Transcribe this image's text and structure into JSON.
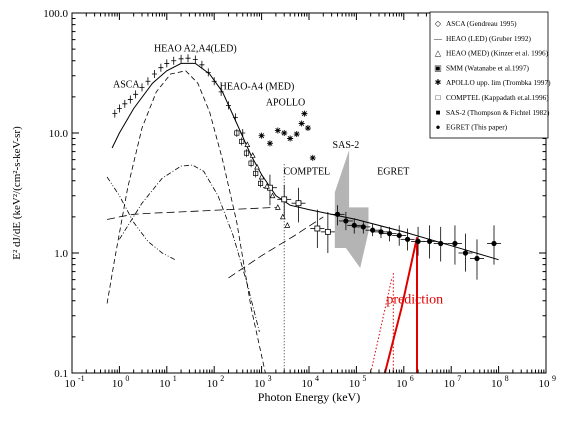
{
  "chart_data": {
    "type": "scatter",
    "xlabel": "Photon Energy (keV)",
    "ylabel": "E² dJ/dE (keV²/(cm²-s-keV-sr)",
    "xlog": true,
    "ylog": true,
    "xlim": [
      0.1,
      1000000000
    ],
    "ylim": [
      0.1,
      100
    ],
    "grid": false,
    "legend_position": "top-right",
    "x_ticks": [
      {
        "value": 0.1,
        "label": "10",
        "exp": "-1"
      },
      {
        "value": 1,
        "label": "10",
        "exp": "0"
      },
      {
        "value": 10,
        "label": "10",
        "exp": "1"
      },
      {
        "value": 100,
        "label": "10",
        "exp": "2"
      },
      {
        "value": 1000,
        "label": "10",
        "exp": "3"
      },
      {
        "value": 10000,
        "label": "10",
        "exp": "4"
      },
      {
        "value": 100000,
        "label": "10",
        "exp": "5"
      },
      {
        "value": 1000000,
        "label": "10",
        "exp": "6"
      },
      {
        "value": 10000000,
        "label": "10",
        "exp": "7"
      },
      {
        "value": 100000000,
        "label": "10",
        "exp": "8"
      },
      {
        "value": 1000000000,
        "label": "10",
        "exp": "9"
      }
    ],
    "y_ticks": [
      {
        "value": 0.1,
        "label": "0.1"
      },
      {
        "value": 1,
        "label": "1.0"
      },
      {
        "value": 10,
        "label": "10.0"
      },
      {
        "value": 100,
        "label": "100.0"
      }
    ],
    "legend": [
      {
        "marker": "◇",
        "label": "ASCA (Gendreau 1995)"
      },
      {
        "marker": "—",
        "label": "HEAO (LED) (Gruber 1992)"
      },
      {
        "marker": "△",
        "label": "HEAO (MED) (Kinzer et al. 1996)"
      },
      {
        "marker": "▣",
        "label": "SMM (Watanabe et al.1997)"
      },
      {
        "marker": "✱",
        "label": "APOLLO upp. lim (Trombka 1997)"
      },
      {
        "marker": "□",
        "label": "COMPTEL (Kappadath et.al.1996)"
      },
      {
        "marker": "■",
        "label": "SAS-2 (Thompson & Fichtel 1982)"
      },
      {
        "marker": "●",
        "label": "EGRET (This paper)"
      }
    ],
    "annotations": [
      {
        "text": "HEAO A2,A4(LED)",
        "x": 40,
        "y": 48
      },
      {
        "text": "ASCA",
        "x": 1.4,
        "y": 24
      },
      {
        "text": "HEAO-A4 (MED)",
        "x": 800,
        "y": 23
      },
      {
        "text": "APOLLO",
        "x": 3200,
        "y": 17
      },
      {
        "text": "SAS-2",
        "x": 60000,
        "y": 7.5
      },
      {
        "text": "COMPTEL",
        "x": 9000,
        "y": 4.5
      },
      {
        "text": "EGRET",
        "x": 600000,
        "y": 4.5
      },
      {
        "text": "prediction",
        "x": 1700000,
        "y": 0.38
      }
    ],
    "series": [
      {
        "name": "EGRET (This paper)",
        "marker": "filled-circle",
        "points": [
          {
            "x": 40000,
            "y": 2.1,
            "ylo": 1.7,
            "yhi": 2.5
          },
          {
            "x": 60000,
            "y": 1.85,
            "ylo": 1.55,
            "yhi": 2.2
          },
          {
            "x": 90000,
            "y": 1.7,
            "ylo": 1.45,
            "yhi": 1.95
          },
          {
            "x": 140000,
            "y": 1.65,
            "ylo": 1.45,
            "yhi": 1.85
          },
          {
            "x": 220000,
            "y": 1.55,
            "ylo": 1.38,
            "yhi": 1.75
          },
          {
            "x": 330000,
            "y": 1.5,
            "ylo": 1.33,
            "yhi": 1.68
          },
          {
            "x": 500000,
            "y": 1.45,
            "ylo": 1.25,
            "yhi": 1.65
          },
          {
            "x": 800000,
            "y": 1.4,
            "ylo": 1.15,
            "yhi": 1.7
          },
          {
            "x": 1200000,
            "y": 1.3,
            "ylo": 1.05,
            "yhi": 1.6
          },
          {
            "x": 2000000,
            "y": 1.25,
            "ylo": 0.95,
            "yhi": 1.65
          },
          {
            "x": 3500000,
            "y": 1.25,
            "ylo": 0.9,
            "yhi": 1.7
          },
          {
            "x": 6000000,
            "y": 1.2,
            "ylo": 0.85,
            "yhi": 1.65
          },
          {
            "x": 12000000,
            "y": 1.2,
            "ylo": 0.8,
            "yhi": 1.7
          },
          {
            "x": 20000000,
            "y": 1.0,
            "ylo": 0.7,
            "yhi": 1.45
          },
          {
            "x": 35000000,
            "y": 0.9,
            "ylo": 0.6,
            "yhi": 1.3
          },
          {
            "x": 80000000,
            "y": 1.2,
            "ylo": 0.8,
            "yhi": 1.7
          }
        ]
      },
      {
        "name": "COMPTEL (Kappadath et.al.1996)",
        "marker": "open-square",
        "points": [
          {
            "x": 1500,
            "y": 3.5,
            "ylo": 2.5,
            "yhi": 4.5
          },
          {
            "x": 3000,
            "y": 2.8,
            "ylo": 2.0,
            "yhi": 3.7
          },
          {
            "x": 6000,
            "y": 2.6,
            "ylo": 1.8,
            "yhi": 3.5
          },
          {
            "x": 15000,
            "y": 1.6,
            "ylo": 1.1,
            "yhi": 2.3
          },
          {
            "x": 25000,
            "y": 1.5,
            "ylo": 1.0,
            "yhi": 2.2
          }
        ]
      },
      {
        "name": "APOLLO upp. lim (Trombka 1997)",
        "marker": "asterisk",
        "points": [
          {
            "x": 1000,
            "y": 9.5
          },
          {
            "x": 1500,
            "y": 8.2
          },
          {
            "x": 2200,
            "y": 10.5
          },
          {
            "x": 3000,
            "y": 10.0
          },
          {
            "x": 4000,
            "y": 9.0
          },
          {
            "x": 5500,
            "y": 9.8
          },
          {
            "x": 7000,
            "y": 12.0
          },
          {
            "x": 8000,
            "y": 14.5
          },
          {
            "x": 9500,
            "y": 11.0
          },
          {
            "x": 12000,
            "y": 6.2
          }
        ]
      },
      {
        "name": "HEAO (LED) (Gruber 1992)",
        "marker": "crosshair",
        "points": [
          {
            "x": 0.8,
            "y": 14.5
          },
          {
            "x": 1.0,
            "y": 16.0
          },
          {
            "x": 1.3,
            "y": 17.5
          },
          {
            "x": 1.7,
            "y": 19.0
          },
          {
            "x": 2.2,
            "y": 21.0
          },
          {
            "x": 3.0,
            "y": 24.0
          },
          {
            "x": 4.0,
            "y": 27.0
          },
          {
            "x": 5.5,
            "y": 31.0
          },
          {
            "x": 7.5,
            "y": 35.0
          },
          {
            "x": 10,
            "y": 38.0
          },
          {
            "x": 14,
            "y": 40.0
          },
          {
            "x": 20,
            "y": 41.5
          },
          {
            "x": 28,
            "y": 42.0
          },
          {
            "x": 40,
            "y": 41.0
          },
          {
            "x": 55,
            "y": 37.0
          },
          {
            "x": 75,
            "y": 32.0
          },
          {
            "x": 100,
            "y": 27.0
          },
          {
            "x": 140,
            "y": 22.0
          },
          {
            "x": 200,
            "y": 17.0
          },
          {
            "x": 280,
            "y": 13.5
          },
          {
            "x": 400,
            "y": 10.0
          }
        ]
      },
      {
        "name": "HEAO (MED) (Kinzer et al. 1996)",
        "marker": "triangle",
        "points": [
          {
            "x": 500,
            "y": 8.0
          },
          {
            "x": 650,
            "y": 6.5
          },
          {
            "x": 800,
            "y": 5.2
          },
          {
            "x": 1000,
            "y": 4.3
          },
          {
            "x": 1300,
            "y": 3.6
          },
          {
            "x": 1700,
            "y": 3.0
          },
          {
            "x": 2200,
            "y": 2.4
          },
          {
            "x": 2800,
            "y": 2.0
          },
          {
            "x": 3500,
            "y": 1.7
          }
        ]
      },
      {
        "name": "SMM (Watanabe et al.1997)",
        "marker": "boxed-plus",
        "points": [
          {
            "x": 300,
            "y": 10.0
          },
          {
            "x": 380,
            "y": 8.5
          },
          {
            "x": 480,
            "y": 6.8
          },
          {
            "x": 600,
            "y": 5.6
          },
          {
            "x": 750,
            "y": 4.6
          },
          {
            "x": 950,
            "y": 3.8
          }
        ]
      }
    ],
    "bands": [
      {
        "name": "SAS-2 (Thompson & Fichtel 1982)",
        "polygon": [
          [
            35000,
            1.1
          ],
          [
            35000,
            3.2
          ],
          [
            70000,
            7.2
          ],
          [
            70000,
            2.4
          ],
          [
            180000,
            2.4
          ],
          [
            180000,
            1.5
          ],
          [
            120000,
            0.75
          ],
          [
            60000,
            1.1
          ]
        ]
      }
    ],
    "curves": [
      {
        "name": "total model",
        "style": "solid",
        "x": [
          0.7,
          1,
          2,
          5,
          10,
          20,
          40,
          80,
          150,
          300,
          600,
          1000,
          2000,
          4000,
          10000,
          100000,
          1000000,
          10000000,
          100000000
        ],
        "y": [
          7.5,
          10,
          16,
          26,
          33,
          38,
          38,
          31,
          22,
          12,
          6.5,
          4.5,
          3.0,
          2.5,
          2.3,
          1.9,
          1.5,
          1.15,
          0.88
        ]
      },
      {
        "name": "component 1",
        "style": "dashed",
        "x": [
          0.55,
          0.8,
          1.5,
          3,
          6,
          12,
          25,
          45,
          80,
          150,
          300,
          600,
          1200
        ],
        "y": [
          0.38,
          0.9,
          3.5,
          11,
          22,
          31,
          33,
          26,
          15,
          6,
          1.8,
          0.35,
          0.1
        ]
      },
      {
        "name": "component 2",
        "style": "dash-dot",
        "x": [
          1,
          3,
          8,
          20,
          35,
          60,
          120,
          250,
          500,
          900
        ],
        "y": [
          1.3,
          2.6,
          4.2,
          5.3,
          5.4,
          4.8,
          3.0,
          1.4,
          0.55,
          0.22
        ]
      },
      {
        "name": "component 3",
        "style": "dash-dot-dot",
        "x": [
          0.55,
          1,
          2,
          4,
          8,
          15
        ],
        "y": [
          4.3,
          3.0,
          1.8,
          1.25,
          1.0,
          0.88
        ]
      },
      {
        "name": "component 4",
        "style": "long-dash",
        "x": [
          0.55,
          1,
          2,
          5,
          20,
          200,
          2000
        ],
        "y": [
          1.9,
          2.0,
          2.1,
          2.15,
          2.2,
          2.3,
          2.4
        ]
      },
      {
        "name": "component 5",
        "style": "long-dash",
        "x": [
          200,
          1000,
          5000,
          20000
        ],
        "y": [
          0.62,
          0.95,
          1.4,
          2.0
        ]
      },
      {
        "name": "component 6",
        "style": "dotted",
        "x": [
          3000,
          3000
        ],
        "y": [
          5.5,
          0.1
        ]
      },
      {
        "name": "prediction lines",
        "style": "red-solid",
        "x": [
          400000,
          900000,
          1900000
        ],
        "y": [
          0.1,
          0.35,
          1.35
        ]
      },
      {
        "name": "prediction lines 2",
        "style": "red-solid",
        "x": [
          1900000,
          1900000
        ],
        "y": [
          1.35,
          0.1
        ]
      },
      {
        "name": "prediction dotted 1",
        "style": "red-dotted",
        "x": [
          200000,
          560000
        ],
        "y": [
          0.1,
          0.62
        ]
      },
      {
        "name": "prediction dotted 2",
        "style": "red-dotted",
        "x": [
          600000,
          600000
        ],
        "y": [
          0.68,
          0.1
        ]
      }
    ]
  }
}
